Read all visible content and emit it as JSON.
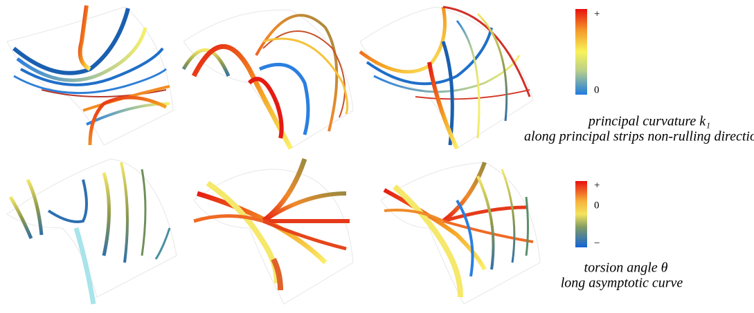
{
  "top_legend": {
    "max_label": "+",
    "min_label": "0",
    "caption": [
      "principal curvature k₁",
      "along principal strips non-rulling direction"
    ]
  },
  "bottom_legend": {
    "max_label": "+",
    "mid_label": "0",
    "min_label": "−",
    "caption": [
      "torsion angle  θ",
      "long asymptotic curve"
    ]
  }
}
